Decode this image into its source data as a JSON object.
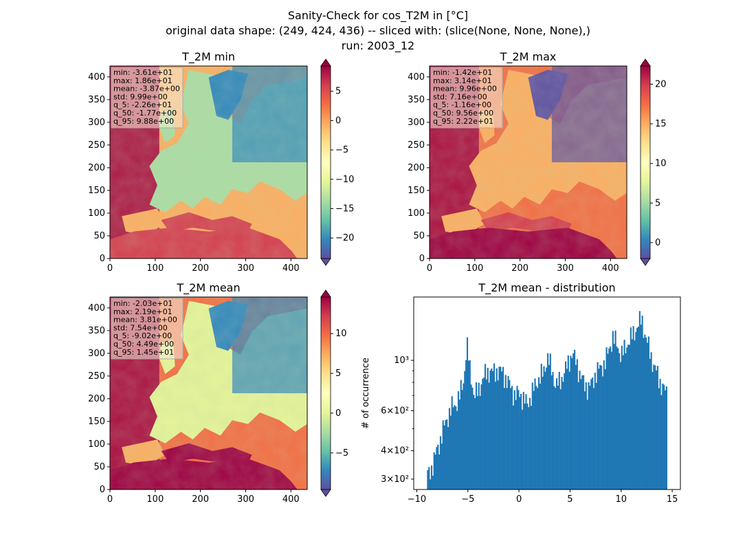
{
  "figure": {
    "title_lines": [
      "Sanity-Check for cos_T2M in [°C]",
      "original data shape: (249, 424, 436) -- sliced with: (slice(None, None, None),)",
      "run: 2003_12"
    ]
  },
  "colors": {
    "spectral_r": [
      "#5e4fa2",
      "#3288bd",
      "#66c2a5",
      "#abdda4",
      "#e6f598",
      "#ffffbf",
      "#fee08b",
      "#fdae61",
      "#f46d43",
      "#d53e4f",
      "#9e0142"
    ],
    "histogram_bar": "#1f77b4",
    "stats_box_bg": "#f5ecd9",
    "stats_box_border": "#aaaaaa"
  },
  "chart_data": [
    {
      "type": "heatmap",
      "title": "T_2M min",
      "x_ticks": [
        0,
        100,
        200,
        300,
        400
      ],
      "y_ticks": [
        0,
        50,
        100,
        150,
        200,
        250,
        300,
        350,
        400
      ],
      "xlim": [
        0,
        436
      ],
      "ylim": [
        0,
        424
      ],
      "stats": [
        "min: -3.61e+01",
        "max: 1.86e+01",
        "mean: -3.87e+00",
        "std: 9.99e+00",
        "q_5: -2.26e+01",
        "q_50: -1.77e+00",
        "q_95: 9.88e+00"
      ],
      "colorbar": {
        "min": -23.5,
        "max": 9.3,
        "ticks": [
          5,
          0,
          -5,
          -10,
          -15,
          -20
        ],
        "tick_labels": [
          "5",
          "0",
          "−5",
          "−10",
          "−15",
          "−20"
        ],
        "extend": "both"
      }
    },
    {
      "type": "heatmap",
      "title": "T_2M max",
      "x_ticks": [
        0,
        100,
        200,
        300,
        400
      ],
      "y_ticks": [
        0,
        50,
        100,
        150,
        200,
        250,
        300,
        350,
        400
      ],
      "xlim": [
        0,
        436
      ],
      "ylim": [
        0,
        424
      ],
      "stats": [
        "min: -1.42e+01",
        "max: 3.14e+01",
        "mean: 9.96e+00",
        "std: 7.16e+00",
        "q_5: -1.16e+00",
        "q_50: 9.56e+00",
        "q_95: 2.22e+01"
      ],
      "colorbar": {
        "min": -2,
        "max": 22.3,
        "ticks": [
          20,
          15,
          10,
          5,
          0
        ],
        "tick_labels": [
          "20",
          "15",
          "10",
          "5",
          "0"
        ],
        "extend": "both"
      }
    },
    {
      "type": "heatmap",
      "title": "T_2M mean",
      "x_ticks": [
        0,
        100,
        200,
        300,
        400
      ],
      "y_ticks": [
        0,
        50,
        100,
        150,
        200,
        250,
        300,
        350,
        400
      ],
      "xlim": [
        0,
        436
      ],
      "ylim": [
        0,
        424
      ],
      "stats": [
        "min: -2.03e+01",
        "max: 2.19e+01",
        "mean: 3.81e+00",
        "std: 7.54e+00",
        "q_5: -9.02e+00",
        "q_50: 4.49e+00",
        "q_95: 1.45e+01"
      ],
      "colorbar": {
        "min": -9.6,
        "max": 14.6,
        "ticks": [
          10,
          5,
          0,
          -5
        ],
        "tick_labels": [
          "10",
          "5",
          "0",
          "−5"
        ],
        "extend": "both"
      }
    },
    {
      "type": "bar",
      "title": "T_2M mean - distribution",
      "ylabel": "# of occurrence",
      "xlabel": "",
      "xlim": [
        -10.3,
        15.8
      ],
      "ylim": [
        270,
        1900
      ],
      "y_scale": "log",
      "x_ticks": [
        -10,
        -5,
        0,
        5,
        10,
        15
      ],
      "x_tick_labels": [
        "−10",
        "−5",
        "0",
        "5",
        "10",
        "15"
      ],
      "y_ticks": [
        300,
        400,
        600,
        1000
      ],
      "y_tick_labels": [
        "3×10²",
        "4×10²",
        "6×10²",
        "10³"
      ],
      "bin_range": [
        -9.0,
        14.5
      ],
      "bin_count": 188,
      "control_points": [
        [
          -9.0,
          310
        ],
        [
          -8.6,
          330
        ],
        [
          -8.2,
          380
        ],
        [
          -7.8,
          430
        ],
        [
          -7.4,
          500
        ],
        [
          -7.0,
          560
        ],
        [
          -6.6,
          620
        ],
        [
          -6.2,
          640
        ],
        [
          -5.8,
          700
        ],
        [
          -5.4,
          820
        ],
        [
          -5.1,
          1180
        ],
        [
          -4.8,
          900
        ],
        [
          -4.4,
          700
        ],
        [
          -4.0,
          730
        ],
        [
          -3.6,
          820
        ],
        [
          -3.2,
          880
        ],
        [
          -2.8,
          900
        ],
        [
          -2.4,
          880
        ],
        [
          -2.0,
          910
        ],
        [
          -1.6,
          880
        ],
        [
          -1.2,
          820
        ],
        [
          -0.8,
          760
        ],
        [
          -0.4,
          700
        ],
        [
          0.0,
          720
        ],
        [
          0.4,
          680
        ],
        [
          0.8,
          640
        ],
        [
          1.2,
          700
        ],
        [
          1.6,
          780
        ],
        [
          2.0,
          840
        ],
        [
          2.4,
          880
        ],
        [
          2.8,
          1040
        ],
        [
          3.2,
          900
        ],
        [
          3.6,
          780
        ],
        [
          4.0,
          800
        ],
        [
          4.4,
          880
        ],
        [
          4.8,
          960
        ],
        [
          5.2,
          1080
        ],
        [
          5.6,
          980
        ],
        [
          6.0,
          860
        ],
        [
          6.4,
          780
        ],
        [
          6.8,
          760
        ],
        [
          7.2,
          800
        ],
        [
          7.6,
          900
        ],
        [
          8.0,
          920
        ],
        [
          8.4,
          980
        ],
        [
          8.8,
          1100
        ],
        [
          9.2,
          1280
        ],
        [
          9.6,
          1160
        ],
        [
          10.0,
          1060
        ],
        [
          10.4,
          1120
        ],
        [
          10.8,
          1240
        ],
        [
          11.2,
          1300
        ],
        [
          11.6,
          1420
        ],
        [
          12.0,
          1520
        ],
        [
          12.4,
          1260
        ],
        [
          12.8,
          1100
        ],
        [
          13.2,
          940
        ],
        [
          13.6,
          860
        ],
        [
          14.0,
          760
        ],
        [
          14.5,
          720
        ]
      ]
    }
  ]
}
